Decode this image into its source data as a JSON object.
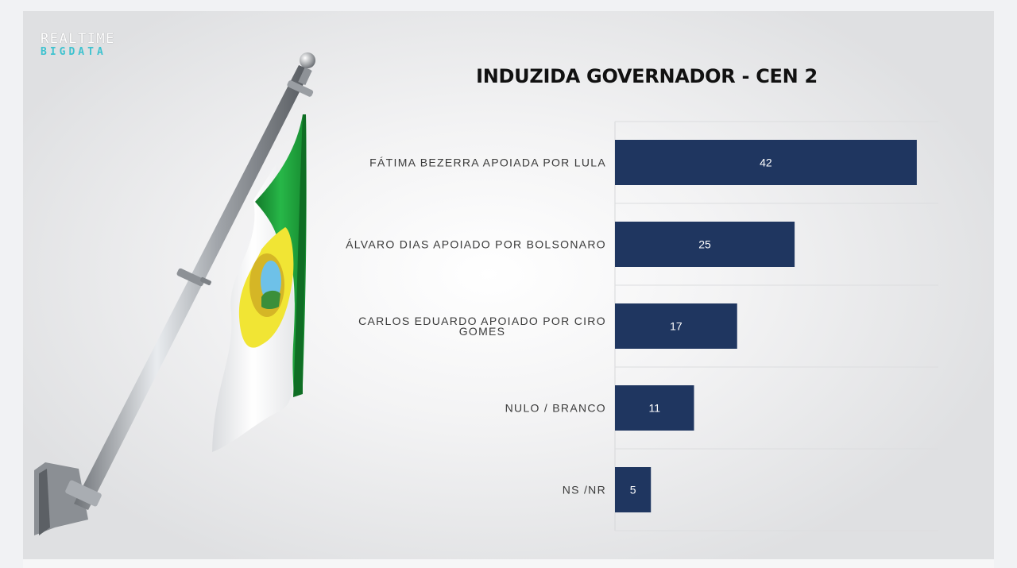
{
  "logo": {
    "line1": "REALTIME",
    "line2": "BIGDATA"
  },
  "chart_data": {
    "type": "bar",
    "orientation": "horizontal",
    "title": "INDUZIDA GOVERNADOR - CEN 2",
    "categories": [
      "FÁTIMA BEZERRA APOIADA POR LULA",
      "ÁLVARO DIAS APOIADO POR BOLSONARO",
      "CARLOS EDUARDO APOIADO POR CIRO GOMES",
      "NULO / BRANCO",
      "NS /NR"
    ],
    "category_lines": [
      [
        "FÁTIMA BEZERRA APOIADA POR LULA"
      ],
      [
        "ÁLVARO DIAS APOIADO POR BOLSONARO"
      ],
      [
        "CARLOS EDUARDO APOIADO POR CIRO",
        "GOMES"
      ],
      [
        "NULO / BRANCO"
      ],
      [
        "NS /NR"
      ]
    ],
    "values": [
      42,
      25,
      17,
      11,
      5
    ],
    "xlim": [
      0,
      45
    ],
    "bar_color": "#1f3660",
    "grid": "horizontal separators",
    "legend": "none"
  },
  "colors": {
    "flag_green": "#1fa53c",
    "flag_yellow": "#f1e534",
    "pole": "#9a9ea3"
  }
}
